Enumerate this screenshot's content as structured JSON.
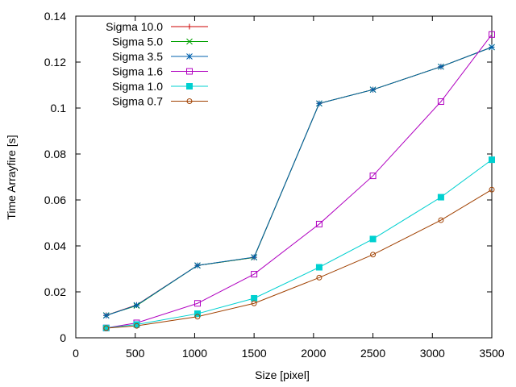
{
  "chart_data": {
    "type": "line",
    "title": "",
    "xlabel": "Size [pixel]",
    "ylabel": "Time Arrayfire [s]",
    "xlim": [
      0,
      3500
    ],
    "ylim": [
      0,
      0.14
    ],
    "xticks": [
      0,
      500,
      1000,
      1500,
      2000,
      2500,
      3000,
      3500
    ],
    "yticks": [
      0,
      0.02,
      0.04,
      0.06,
      0.08,
      0.1,
      0.12,
      0.14
    ],
    "xtick_labels": [
      "0",
      "500",
      "1000",
      "1500",
      "2000",
      "2500",
      "3000",
      "3500"
    ],
    "ytick_labels": [
      "0",
      "0.02",
      "0.04",
      "0.06",
      "0.08",
      "0.1",
      "0.12",
      "0.14"
    ],
    "grid": false,
    "legend_position": "top-left",
    "x": [
      256,
      512,
      1024,
      1500,
      2048,
      2500,
      3072,
      3500
    ],
    "series": [
      {
        "name": "Sigma 10.0",
        "color": "#cc0000",
        "marker": "plus",
        "values": [
          0.0098,
          0.0143,
          0.0315,
          0.035,
          0.102,
          0.108,
          0.118,
          0.1265
        ]
      },
      {
        "name": "Sigma 5.0",
        "color": "#00a000",
        "marker": "cross",
        "values": [
          0.0098,
          0.014,
          0.0315,
          0.035,
          0.102,
          0.108,
          0.118,
          0.1265
        ]
      },
      {
        "name": "Sigma 3.5",
        "color": "#0060ad",
        "marker": "star",
        "values": [
          0.0097,
          0.0142,
          0.0315,
          0.0351,
          0.102,
          0.108,
          0.118,
          0.1265
        ]
      },
      {
        "name": "Sigma 1.6",
        "color": "#b000c0",
        "marker": "box",
        "values": [
          0.0043,
          0.0065,
          0.015,
          0.0277,
          0.0495,
          0.0705,
          0.1028,
          0.132
        ]
      },
      {
        "name": "Sigma 1.0",
        "color": "#00d0d0",
        "marker": "filled-box",
        "values": [
          0.0043,
          0.0058,
          0.0105,
          0.0172,
          0.0307,
          0.043,
          0.0612,
          0.0775
        ]
      },
      {
        "name": "Sigma 0.7",
        "color": "#a04000",
        "marker": "circle",
        "values": [
          0.0042,
          0.0052,
          0.0092,
          0.015,
          0.0262,
          0.0362,
          0.0512,
          0.0645
        ]
      }
    ]
  }
}
